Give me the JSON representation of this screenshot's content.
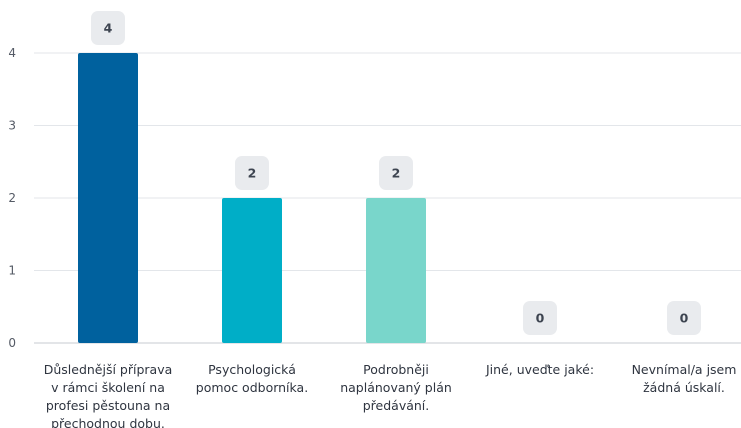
{
  "chart_data": {
    "type": "bar",
    "categories": [
      "Důslednější příprava v rámci školení na profesi pěstouna na přechodnou dobu.",
      "Psychologická pomoc odborníka.",
      "Podrobněji naplánovaný plán předávání.",
      "Jiné, uveďte jaké:",
      "Nevnímal/a jsem žádná úskalí."
    ],
    "category_lines": [
      [
        "Důslednější příprava",
        "v rámci školení na",
        "profesi pěstouna na",
        "přechodnou dobu."
      ],
      [
        "Psychologická",
        "pomoc odborníka."
      ],
      [
        "Podrobněji",
        "naplánovaný plán",
        "předávání."
      ],
      [
        "Jiné, uveďte jaké:"
      ],
      [
        "Nevnímal/a jsem",
        "žádná úskalí."
      ]
    ],
    "values": [
      4,
      2,
      2,
      0,
      0
    ],
    "value_labels": [
      "4",
      "2",
      "2",
      "0",
      "0"
    ],
    "colors": [
      "#00619e",
      "#00aec7",
      "#79d6cb",
      "#00aec7",
      "#00aec7"
    ],
    "yticks": [
      "0",
      "1",
      "2",
      "3",
      "4"
    ],
    "ylim": [
      0,
      4
    ],
    "grid": true
  }
}
